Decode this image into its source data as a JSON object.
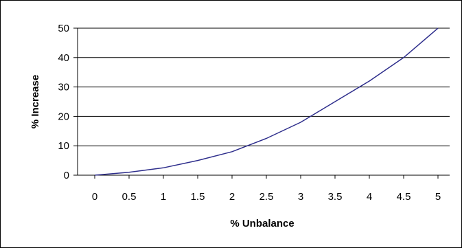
{
  "chart_data": {
    "type": "line",
    "xlabel": "% Unbalance",
    "ylabel": "% Increase",
    "xlim": [
      0,
      5
    ],
    "ylim": [
      0,
      50
    ],
    "x_ticks": [
      "0",
      "0.5",
      "1",
      "1.5",
      "2",
      "2.5",
      "3",
      "3.5",
      "4",
      "4.5",
      "5"
    ],
    "y_ticks": [
      "0",
      "10",
      "20",
      "30",
      "40",
      "50"
    ],
    "grid": "horizontal",
    "legend": "none",
    "series": [
      {
        "color": "#2e2e8c",
        "x": [
          0,
          0.5,
          1,
          1.5,
          2,
          2.5,
          3,
          3.5,
          4,
          4.5,
          5
        ],
        "y": [
          0,
          1,
          2.5,
          5,
          8,
          12.5,
          18,
          25,
          32,
          40,
          50
        ]
      }
    ]
  }
}
